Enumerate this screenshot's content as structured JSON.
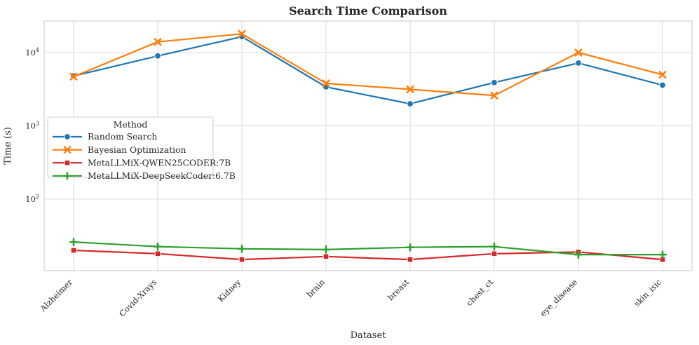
{
  "chart_data": {
    "type": "line",
    "title": "Search Time Comparison",
    "xlabel": "Dataset",
    "ylabel": "Time (s)",
    "yscale": "log",
    "ylim": [
      10.5,
      27000
    ],
    "ytick_exponents": [
      2,
      3,
      4
    ],
    "grid": true,
    "legend_title": "Method",
    "legend_location": "upper-left inside plot",
    "categories": [
      "Alzheimer",
      "Covid-Xrays",
      "Kidney",
      "brain",
      "breast",
      "chest_ct",
      "eye_disease",
      "skin_isic"
    ],
    "series": [
      {
        "name": "Random Search",
        "color": "#1f77b4",
        "marker": "circle",
        "values": [
          4800,
          9000,
          16500,
          3400,
          2000,
          3900,
          7200,
          3600
        ]
      },
      {
        "name": "Bayesian Optimization",
        "color": "#ff7f0e",
        "marker": "x",
        "values": [
          4700,
          14000,
          18000,
          3800,
          3150,
          2600,
          10000,
          5000
        ]
      },
      {
        "name": "MetaLLMiX-QWEN25CODER:7B",
        "color": "#d62728",
        "marker": "square",
        "values": [
          20,
          18,
          15,
          16.5,
          15,
          18,
          19,
          15
        ]
      },
      {
        "name": "MetaLLMiX-DeepSeekCoder:6.7B",
        "color": "#2ca02c",
        "marker": "plus",
        "values": [
          26,
          22.5,
          21,
          20.5,
          22,
          22.5,
          17.5,
          17.5
        ]
      }
    ],
    "style_colors": {
      "grid": "#dcdcdc",
      "spine": "#cfcfcf",
      "text": "#262626",
      "legend_border": "#cccccc",
      "background": "#ffffff"
    }
  }
}
